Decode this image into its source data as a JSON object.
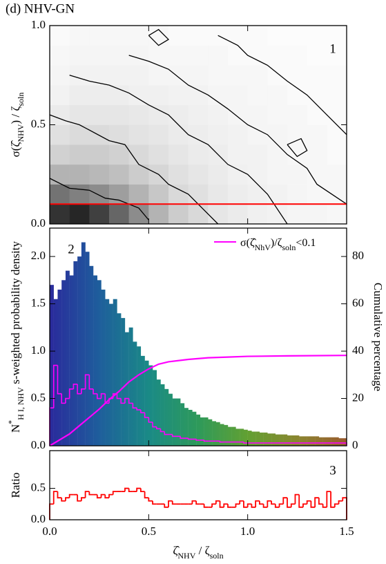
{
  "chart_data": [
    {
      "type": "heatmap",
      "title": "(d) NHV-GN",
      "panel_label": "1",
      "ylabel": [
        {
          "text": "σ(ζ̂"
        },
        {
          "text": "NHV",
          "pos": "sub"
        },
        {
          "text": ") / ζ"
        },
        {
          "text": "soln",
          "pos": "sub"
        }
      ],
      "xlim": [
        0,
        1.5
      ],
      "ylim": [
        0,
        1.0
      ],
      "yticks": [
        {
          "value": 0,
          "label": "0.0"
        },
        0.5,
        {
          "value": 1,
          "label": "1.0"
        }
      ],
      "heatmap": {
        "xbins": [
          0,
          0.1,
          0.2,
          0.3,
          0.4,
          0.5,
          0.6,
          0.7,
          0.8,
          0.9,
          1.0,
          1.1,
          1.2,
          1.3,
          1.4,
          1.5
        ],
        "ybins": [
          0,
          0.1,
          0.2,
          0.3,
          0.4,
          0.5,
          0.6,
          0.7,
          0.8,
          0.9,
          1.0
        ],
        "z": [
          [
            0.8,
            0.85,
            0.75,
            0.6,
            0.45,
            0.3,
            0.2,
            0.15,
            0.1,
            0.08,
            0.06,
            0.05,
            0.04,
            0.04,
            0.03
          ],
          [
            0.55,
            0.5,
            0.45,
            0.38,
            0.3,
            0.22,
            0.15,
            0.12,
            0.09,
            0.07,
            0.06,
            0.05,
            0.04,
            0.03,
            0.03
          ],
          [
            0.3,
            0.3,
            0.28,
            0.25,
            0.2,
            0.16,
            0.12,
            0.1,
            0.08,
            0.06,
            0.05,
            0.04,
            0.04,
            0.03,
            0.03
          ],
          [
            0.18,
            0.2,
            0.2,
            0.18,
            0.15,
            0.12,
            0.1,
            0.08,
            0.07,
            0.05,
            0.05,
            0.04,
            0.03,
            0.03,
            0.02
          ],
          [
            0.12,
            0.14,
            0.14,
            0.13,
            0.11,
            0.1,
            0.08,
            0.07,
            0.06,
            0.05,
            0.04,
            0.04,
            0.03,
            0.03,
            0.02
          ],
          [
            0.08,
            0.1,
            0.1,
            0.1,
            0.09,
            0.08,
            0.07,
            0.06,
            0.05,
            0.04,
            0.04,
            0.03,
            0.03,
            0.02,
            0.02
          ],
          [
            0.05,
            0.07,
            0.07,
            0.07,
            0.06,
            0.06,
            0.05,
            0.05,
            0.04,
            0.04,
            0.03,
            0.03,
            0.02,
            0.02,
            0.02
          ],
          [
            0.04,
            0.05,
            0.05,
            0.05,
            0.05,
            0.04,
            0.04,
            0.04,
            0.03,
            0.03,
            0.03,
            0.02,
            0.02,
            0.02,
            0.02
          ],
          [
            0.03,
            0.04,
            0.04,
            0.04,
            0.04,
            0.03,
            0.03,
            0.03,
            0.03,
            0.02,
            0.02,
            0.02,
            0.02,
            0.01,
            0.01
          ],
          [
            0.02,
            0.03,
            0.03,
            0.03,
            0.03,
            0.03,
            0.02,
            0.02,
            0.02,
            0.02,
            0.02,
            0.01,
            0.01,
            0.01,
            0.01
          ]
        ]
      },
      "contour_color": "#000000",
      "contours": [
        {
          "x": [
            0,
            0.1,
            0.2,
            0.28,
            0.35,
            0.45,
            0.5
          ],
          "y": [
            0.23,
            0.18,
            0.17,
            0.13,
            0.12,
            0.08,
            0.02
          ]
        },
        {
          "x": [
            0,
            0.08,
            0.15,
            0.3,
            0.38,
            0.45,
            0.55,
            0.6,
            0.7,
            0.75,
            0.85
          ],
          "y": [
            0.55,
            0.52,
            0.5,
            0.42,
            0.4,
            0.3,
            0.25,
            0.2,
            0.15,
            0.1,
            0.0
          ]
        },
        {
          "x": [
            0.1,
            0.2,
            0.3,
            0.4,
            0.5,
            0.6,
            0.7,
            0.8,
            0.9,
            1.0,
            1.1,
            1.2
          ],
          "y": [
            0.75,
            0.72,
            0.7,
            0.66,
            0.6,
            0.55,
            0.45,
            0.4,
            0.3,
            0.25,
            0.15,
            0.0
          ]
        },
        {
          "x": [
            0.4,
            0.5,
            0.6,
            0.7,
            0.8,
            0.9,
            1.0,
            1.1,
            1.2,
            1.3,
            1.35,
            1.5
          ],
          "y": [
            0.85,
            0.82,
            0.78,
            0.7,
            0.65,
            0.58,
            0.5,
            0.45,
            0.35,
            0.28,
            0.2,
            0.1
          ]
        },
        {
          "x": [
            0.85,
            0.95,
            1.0,
            1.1,
            1.2,
            1.3,
            1.4,
            1.5
          ],
          "y": [
            0.95,
            0.9,
            0.85,
            0.8,
            0.72,
            0.65,
            0.55,
            0.45
          ]
        },
        {
          "x": [
            0.5,
            0.55,
            0.6,
            0.55,
            0.5
          ],
          "y": [
            0.95,
            0.98,
            0.93,
            0.9,
            0.95
          ]
        },
        {
          "x": [
            1.2,
            1.27,
            1.3,
            1.25,
            1.2
          ],
          "y": [
            0.4,
            0.43,
            0.37,
            0.34,
            0.4
          ]
        }
      ],
      "hline": {
        "value": 0.1,
        "color": "#ff0000"
      }
    },
    {
      "type": "histogram",
      "panel_label": "2",
      "ylabel": [
        {
          "text": "N"
        },
        {
          "text": "*",
          "pos": "sup"
        },
        {
          "text": "H I, NHV",
          "pos": "sub"
        },
        {
          "text": " s-weighted probability density"
        }
      ],
      "y2label": "Cumulative percentage",
      "xlim": [
        0,
        1.5
      ],
      "ylim": [
        0,
        2.3
      ],
      "y2lim": [
        0,
        92
      ],
      "yticks": [
        {
          "value": 0,
          "label": "0.0"
        },
        0.5,
        {
          "value": 1,
          "label": "1.0"
        },
        1.5,
        {
          "value": 2,
          "label": "2.0"
        }
      ],
      "y2ticks": [
        0,
        20,
        40,
        60,
        80
      ],
      "bins": [
        0,
        0.02,
        0.04,
        0.06,
        0.08,
        0.1,
        0.12,
        0.14,
        0.16,
        0.18,
        0.2,
        0.22,
        0.24,
        0.26,
        0.28,
        0.3,
        0.32,
        0.34,
        0.36,
        0.38,
        0.4,
        0.42,
        0.44,
        0.46,
        0.48,
        0.5,
        0.52,
        0.54,
        0.56,
        0.58,
        0.6,
        0.62,
        0.64,
        0.66,
        0.68,
        0.7,
        0.72,
        0.74,
        0.76,
        0.78,
        0.8,
        0.82,
        0.84,
        0.86,
        0.88,
        0.9,
        0.92,
        0.94,
        0.96,
        0.98,
        1.0,
        1.02,
        1.04,
        1.06,
        1.08,
        1.1,
        1.12,
        1.14,
        1.16,
        1.18,
        1.2,
        1.22,
        1.24,
        1.26,
        1.28,
        1.3,
        1.32,
        1.34,
        1.36,
        1.38,
        1.4,
        1.42,
        1.44,
        1.46,
        1.48,
        1.5
      ],
      "colormap": [
        "#2a2a9c",
        "#1e5e9c",
        "#1a8a86",
        "#2e9a5a",
        "#62a032",
        "#8a8630",
        "#9a5a2e"
      ],
      "series": [
        {
          "values": [
            1.7,
            1.55,
            1.65,
            1.75,
            1.85,
            1.8,
            1.95,
            2.0,
            2.15,
            2.05,
            1.9,
            1.8,
            1.75,
            1.65,
            1.55,
            1.5,
            1.55,
            1.4,
            1.35,
            1.2,
            1.25,
            1.1,
            1.05,
            0.95,
            0.9,
            0.85,
            0.8,
            0.7,
            0.65,
            0.6,
            0.55,
            0.5,
            0.5,
            0.45,
            0.4,
            0.38,
            0.36,
            0.33,
            0.3,
            0.3,
            0.28,
            0.26,
            0.25,
            0.23,
            0.22,
            0.2,
            0.2,
            0.18,
            0.18,
            0.17,
            0.16,
            0.15,
            0.15,
            0.14,
            0.14,
            0.13,
            0.13,
            0.12,
            0.12,
            0.12,
            0.11,
            0.11,
            0.11,
            0.1,
            0.1,
            0.1,
            0.1,
            0.1,
            0.09,
            0.09,
            0.09,
            0.09,
            0.09,
            0.08,
            0.08
          ]
        },
        {
          "name": [
            {
              "text": "σ(ζ̂"
            },
            {
              "text": "NhV",
              "pos": "sub"
            },
            {
              "text": ")/ζ"
            },
            {
              "text": "soln",
              "pos": "sub"
            },
            {
              "text": "<0.1"
            }
          ],
          "color": "#ff00ff",
          "values": [
            0.4,
            0.85,
            0.55,
            0.45,
            0.5,
            0.6,
            0.65,
            0.55,
            0.6,
            0.75,
            0.6,
            0.55,
            0.5,
            0.55,
            0.45,
            0.5,
            0.55,
            0.5,
            0.45,
            0.5,
            0.45,
            0.4,
            0.38,
            0.35,
            0.3,
            0.25,
            0.2,
            0.18,
            0.15,
            0.12,
            0.12,
            0.1,
            0.1,
            0.08,
            0.08,
            0.07,
            0.07,
            0.06,
            0.06,
            0.05,
            0.05,
            0.05,
            0.05,
            0.04,
            0.04,
            0.04,
            0.04,
            0.04,
            0.04,
            0.03,
            0.03,
            0.03,
            0.03,
            0.03,
            0.03,
            0.03,
            0.03,
            0.03,
            0.03,
            0.03,
            0.03,
            0.03,
            0.03,
            0.03,
            0.03,
            0.03,
            0.03,
            0.03,
            0.03,
            0.03,
            0.03,
            0.03,
            0.03,
            0.03,
            0.03
          ]
        }
      ],
      "line": {
        "axis": "y2",
        "color": "#ff00ff",
        "x": [
          0,
          0.05,
          0.1,
          0.15,
          0.2,
          0.25,
          0.3,
          0.35,
          0.4,
          0.45,
          0.5,
          0.55,
          0.6,
          0.7,
          0.8,
          0.9,
          1.0,
          1.2,
          1.5
        ],
        "values": [
          0,
          2.5,
          5,
          8.5,
          12,
          15.5,
          19.5,
          23,
          27,
          30,
          32.5,
          34.5,
          35.5,
          36.5,
          37.2,
          37.5,
          37.8,
          38,
          38.2
        ]
      }
    },
    {
      "type": "histogram",
      "panel_label": "3",
      "ylabel": [
        {
          "text": "Ratio"
        }
      ],
      "xlabel": [
        {
          "text": "ζ̂"
        },
        {
          "text": "NHV",
          "pos": "sub"
        },
        {
          "text": " / ζ"
        },
        {
          "text": "soln",
          "pos": "sub"
        }
      ],
      "xlim": [
        0,
        1.5
      ],
      "ylim": [
        0,
        1.1
      ],
      "xticks": [
        {
          "value": 0,
          "label": "0.0"
        },
        0.5,
        {
          "value": 1,
          "label": "1.0"
        },
        1.5
      ],
      "yticks": [
        {
          "value": 0,
          "label": "0.0"
        },
        0.5
      ],
      "bins": [
        0,
        0.02,
        0.04,
        0.06,
        0.08,
        0.1,
        0.12,
        0.14,
        0.16,
        0.18,
        0.2,
        0.22,
        0.24,
        0.26,
        0.28,
        0.3,
        0.32,
        0.34,
        0.36,
        0.38,
        0.4,
        0.42,
        0.44,
        0.46,
        0.48,
        0.5,
        0.52,
        0.54,
        0.56,
        0.58,
        0.6,
        0.62,
        0.64,
        0.66,
        0.68,
        0.7,
        0.72,
        0.74,
        0.76,
        0.78,
        0.8,
        0.82,
        0.84,
        0.86,
        0.88,
        0.9,
        0.92,
        0.94,
        0.96,
        0.98,
        1.0,
        1.02,
        1.04,
        1.06,
        1.08,
        1.1,
        1.12,
        1.14,
        1.16,
        1.18,
        1.2,
        1.22,
        1.24,
        1.26,
        1.28,
        1.3,
        1.32,
        1.34,
        1.36,
        1.38,
        1.4,
        1.42,
        1.44,
        1.46,
        1.48,
        1.5
      ],
      "color": "#ff0000",
      "values": [
        0.25,
        0.45,
        0.35,
        0.3,
        0.35,
        0.4,
        0.4,
        0.3,
        0.35,
        0.45,
        0.4,
        0.4,
        0.35,
        0.4,
        0.35,
        0.4,
        0.45,
        0.45,
        0.45,
        0.5,
        0.45,
        0.45,
        0.5,
        0.45,
        0.35,
        0.3,
        0.25,
        0.25,
        0.25,
        0.2,
        0.3,
        0.25,
        0.25,
        0.25,
        0.25,
        0.25,
        0.3,
        0.25,
        0.25,
        0.2,
        0.2,
        0.25,
        0.3,
        0.2,
        0.25,
        0.2,
        0.2,
        0.25,
        0.3,
        0.2,
        0.25,
        0.2,
        0.3,
        0.25,
        0.2,
        0.3,
        0.25,
        0.2,
        0.25,
        0.35,
        0.2,
        0.25,
        0.4,
        0.2,
        0.25,
        0.3,
        0.2,
        0.35,
        0.25,
        0.2,
        0.45,
        0.2,
        0.25,
        0.3,
        0.35
      ]
    }
  ]
}
